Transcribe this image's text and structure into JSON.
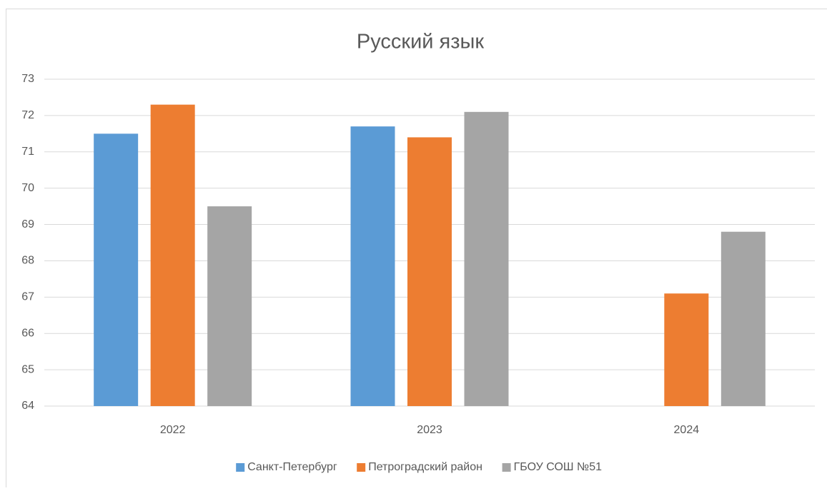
{
  "chart_data": {
    "type": "bar",
    "title": "Русский язык",
    "categories": [
      "2022",
      "2023",
      "2024"
    ],
    "series": [
      {
        "name": "Санкт-Петербург",
        "color": "#5b9bd5",
        "values": [
          71.5,
          71.7,
          null
        ]
      },
      {
        "name": "Петроградский район",
        "color": "#ed7d31",
        "values": [
          72.3,
          71.4,
          67.1
        ]
      },
      {
        "name": "ГБОУ СОШ №51",
        "color": "#a5a5a5",
        "values": [
          69.5,
          72.1,
          68.8
        ]
      }
    ],
    "ylim": [
      64,
      73
    ],
    "yticks": [
      64,
      65,
      66,
      67,
      68,
      69,
      70,
      71,
      72,
      73
    ],
    "grid": true,
    "legend": "bottom"
  }
}
